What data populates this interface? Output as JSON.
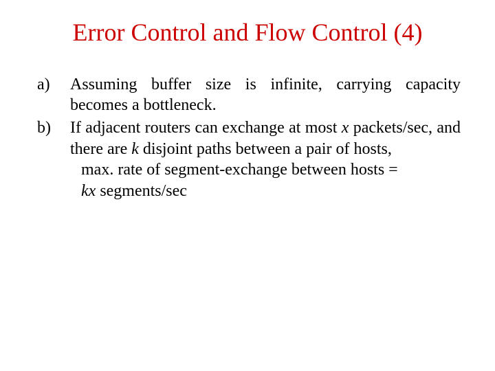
{
  "slide": {
    "title": "Error Control and Flow Control (4)",
    "title_color": "#cc0000",
    "bg_color": "#ffffff",
    "text_color": "#000000",
    "title_fontsize": 36,
    "body_fontsize": 24,
    "font_family": "Times New Roman",
    "items": [
      {
        "marker": "a)",
        "text": "Assuming buffer size is infinite, carrying capacity becomes a bottleneck.",
        "justify": true
      },
      {
        "marker": "b)",
        "text_prefix": "If adjacent routers can exchange at most ",
        "var1": "x",
        "text_mid": " packets/sec, and there are ",
        "var2": "k",
        "text_suffix": " disjoint paths between a pair of hosts,",
        "line2": "max. rate of segment-exchange between hosts = ",
        "var3": "kx",
        "line2_suffix": " segments/sec",
        "justify": true
      }
    ]
  }
}
